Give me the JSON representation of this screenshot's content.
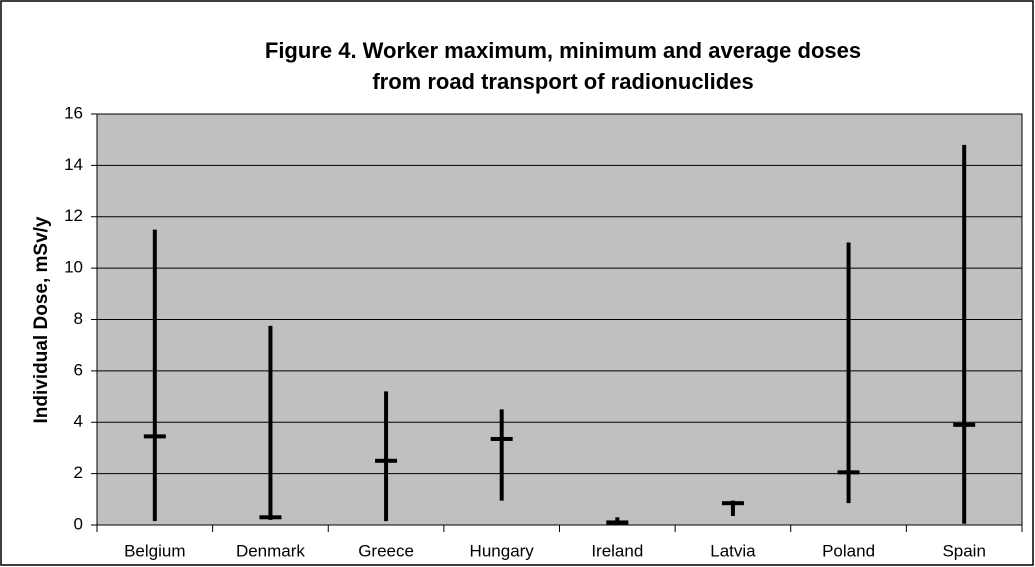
{
  "chart_data": {
    "type": "hilo",
    "title": [
      "Figure 4. Worker maximum, minimum and average doses",
      "from road transport of radionuclides"
    ],
    "y_label": "Individual Dose, mSv/y",
    "categories": [
      "Belgium",
      "Denmark",
      "Greece",
      "Hungary",
      "Ireland",
      "Latvia",
      "Poland",
      "Spain"
    ],
    "max": [
      11.5,
      7.75,
      5.2,
      4.5,
      0.3,
      0.95,
      11,
      14.8
    ],
    "min": [
      0.15,
      0.2,
      0.15,
      0.95,
      0,
      0.35,
      0.85,
      0.05
    ],
    "avg": [
      3.45,
      0.3,
      2.5,
      3.35,
      0.1,
      0.85,
      2.05,
      3.9
    ],
    "color": "#000000",
    "plot_background": "#c0c0c0",
    "ylim": [
      0,
      16
    ],
    "yticks": [
      0,
      2,
      4,
      6,
      8,
      10,
      12,
      14,
      16
    ],
    "grid": true
  }
}
